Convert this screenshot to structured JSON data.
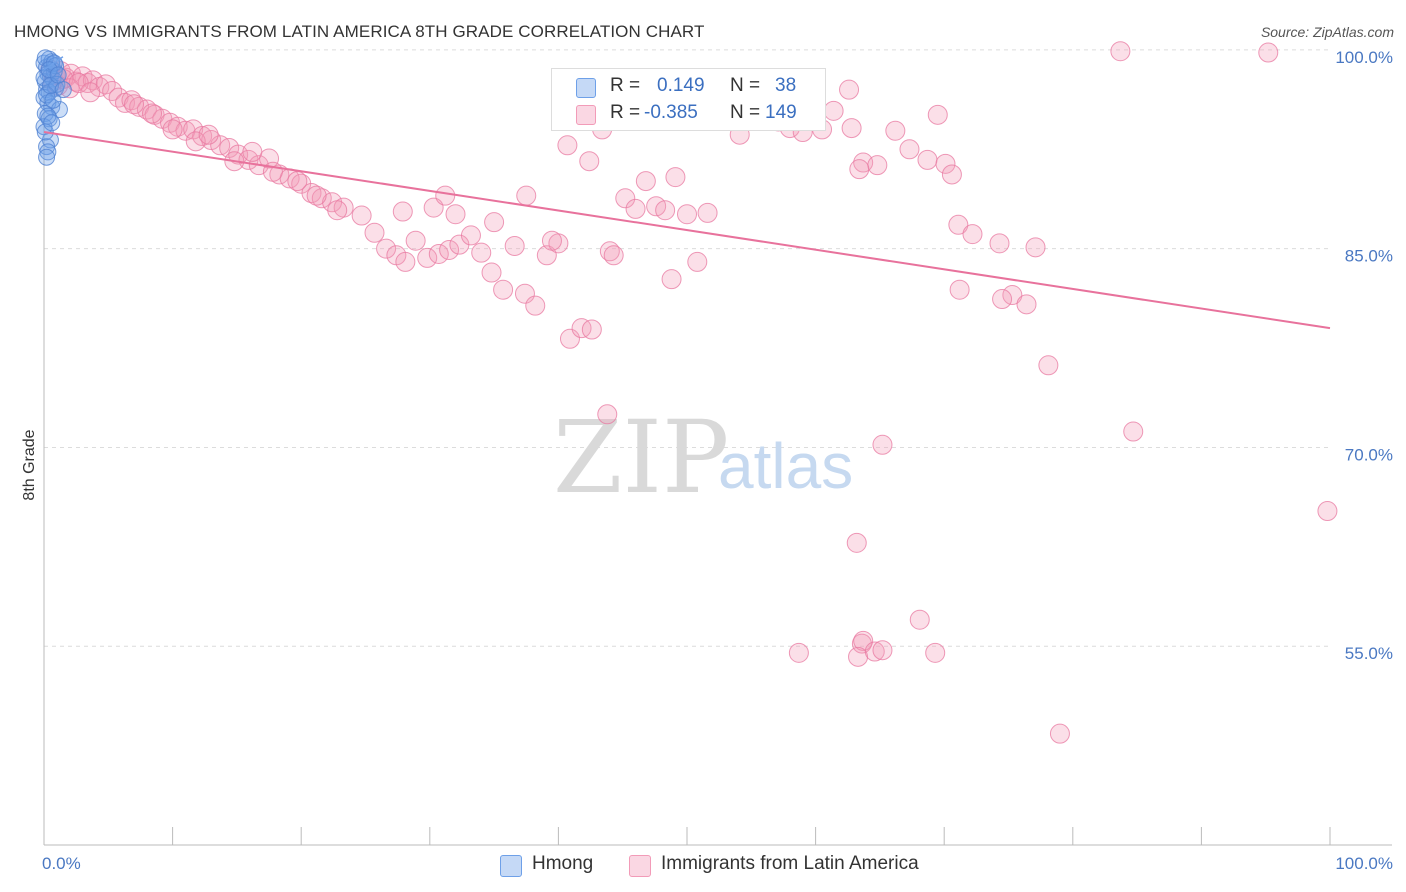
{
  "title": "HMONG VS IMMIGRANTS FROM LATIN AMERICA 8TH GRADE CORRELATION CHART",
  "source": "Source: ZipAtlas.com",
  "legend": {
    "rows": [
      {
        "r_label": "R =",
        "r_value": "0.149",
        "n_label": "N =",
        "n_value": "38",
        "color": "#6ea0e8"
      },
      {
        "r_label": "R =",
        "r_value": "-0.385",
        "n_label": "N =",
        "n_value": "149",
        "color": "#f29bb8"
      }
    ]
  },
  "bottom_legend": [
    {
      "label": "Hmong",
      "color": "#6ea0e8"
    },
    {
      "label": "Immigrants from Latin America",
      "color": "#f29bb8"
    }
  ],
  "watermark": {
    "zip": "ZIP",
    "atlas": "atlas"
  },
  "chart_data": {
    "type": "scatter",
    "title": "HMONG VS IMMIGRANTS FROM LATIN AMERICA 8TH GRADE CORRELATION CHART",
    "xlabel": "",
    "ylabel": "8th Grade",
    "xlim": [
      0,
      100
    ],
    "ylim": [
      40,
      101.5
    ],
    "x_tick_labels": [
      "0.0%",
      "100.0%"
    ],
    "y_ticks": [
      55,
      70,
      85,
      100
    ],
    "y_tick_labels": [
      "55.0%",
      "70.0%",
      "85.0%",
      "100.0%"
    ],
    "grid": true,
    "series": [
      {
        "name": "Hmong",
        "color": "#6ea0e8",
        "points": [
          [
            0.0,
            99.0
          ],
          [
            0.2,
            98.7
          ],
          [
            0.4,
            99.3
          ],
          [
            0.6,
            98.9
          ],
          [
            0.3,
            98.2
          ],
          [
            0.5,
            98.0
          ],
          [
            0.1,
            97.6
          ],
          [
            0.7,
            97.8
          ],
          [
            0.2,
            97.0
          ],
          [
            0.4,
            96.8
          ],
          [
            0.9,
            97.1
          ],
          [
            0.0,
            96.4
          ],
          [
            0.3,
            96.0
          ],
          [
            0.6,
            95.7
          ],
          [
            0.1,
            95.2
          ],
          [
            1.2,
            95.5
          ],
          [
            0.4,
            94.8
          ],
          [
            0.0,
            94.2
          ],
          [
            0.5,
            93.2
          ],
          [
            0.2,
            92.7
          ],
          [
            0.3,
            92.3
          ],
          [
            0.8,
            98.4
          ],
          [
            1.0,
            97.4
          ],
          [
            0.6,
            99.1
          ],
          [
            0.1,
            99.4
          ],
          [
            0.9,
            98.8
          ],
          [
            0.2,
            96.6
          ],
          [
            0.7,
            96.2
          ],
          [
            0.0,
            97.9
          ],
          [
            0.5,
            97.3
          ],
          [
            1.5,
            97.0
          ],
          [
            0.3,
            95.0
          ],
          [
            0.8,
            99.0
          ],
          [
            0.4,
            98.5
          ],
          [
            0.1,
            93.8
          ],
          [
            0.6,
            94.5
          ],
          [
            1.1,
            98.1
          ],
          [
            0.2,
            91.9
          ]
        ],
        "trend": [
          [
            0.0,
            98.5
          ],
          [
            1.5,
            99.5
          ]
        ]
      },
      {
        "name": "Immigrants from Latin America",
        "color": "#f29bb8",
        "points": [
          [
            0.5,
            98.5
          ],
          [
            0.9,
            98.1
          ],
          [
            1.3,
            98.4
          ],
          [
            1.7,
            97.9
          ],
          [
            2.1,
            98.2
          ],
          [
            2.5,
            97.6
          ],
          [
            3.0,
            98.0
          ],
          [
            3.4,
            97.5
          ],
          [
            3.8,
            97.7
          ],
          [
            4.3,
            97.2
          ],
          [
            4.8,
            97.4
          ],
          [
            5.3,
            96.9
          ],
          [
            0.7,
            97.6
          ],
          [
            1.1,
            97.3
          ],
          [
            1.5,
            97.8
          ],
          [
            2.0,
            97.1
          ],
          [
            2.7,
            97.5
          ],
          [
            3.6,
            96.8
          ],
          [
            5.8,
            96.4
          ],
          [
            6.3,
            96.0
          ],
          [
            6.8,
            96.2
          ],
          [
            7.4,
            95.7
          ],
          [
            8.0,
            95.5
          ],
          [
            8.6,
            95.1
          ],
          [
            9.2,
            94.8
          ],
          [
            9.8,
            94.5
          ],
          [
            10.4,
            94.2
          ],
          [
            11.0,
            93.9
          ],
          [
            11.6,
            94.0
          ],
          [
            12.3,
            93.5
          ],
          [
            13.0,
            93.2
          ],
          [
            13.7,
            92.8
          ],
          [
            14.4,
            92.6
          ],
          [
            15.1,
            92.1
          ],
          [
            15.9,
            91.7
          ],
          [
            16.7,
            91.3
          ],
          [
            17.5,
            91.8
          ],
          [
            18.3,
            90.6
          ],
          [
            19.1,
            90.3
          ],
          [
            20.0,
            89.9
          ],
          [
            20.8,
            89.2
          ],
          [
            21.6,
            88.8
          ],
          [
            22.4,
            88.5
          ],
          [
            23.3,
            88.1
          ],
          [
            7.0,
            95.9
          ],
          [
            8.4,
            95.2
          ],
          [
            10.0,
            94.0
          ],
          [
            11.8,
            93.1
          ],
          [
            12.8,
            93.6
          ],
          [
            14.8,
            91.6
          ],
          [
            16.2,
            92.3
          ],
          [
            17.8,
            90.8
          ],
          [
            19.7,
            90.1
          ],
          [
            21.2,
            89.0
          ],
          [
            22.8,
            87.9
          ],
          [
            24.7,
            87.5
          ],
          [
            25.7,
            86.2
          ],
          [
            26.6,
            85.0
          ],
          [
            27.4,
            84.5
          ],
          [
            28.1,
            84.0
          ],
          [
            28.9,
            85.6
          ],
          [
            29.8,
            84.3
          ],
          [
            30.7,
            84.6
          ],
          [
            31.5,
            84.9
          ],
          [
            32.3,
            85.3
          ],
          [
            33.2,
            86.0
          ],
          [
            34.0,
            84.7
          ],
          [
            34.8,
            83.2
          ],
          [
            35.7,
            81.9
          ],
          [
            36.6,
            85.2
          ],
          [
            37.4,
            81.6
          ],
          [
            38.2,
            80.7
          ],
          [
            39.1,
            84.5
          ],
          [
            40.0,
            85.4
          ],
          [
            40.9,
            78.2
          ],
          [
            41.8,
            79.0
          ],
          [
            42.6,
            78.9
          ],
          [
            27.9,
            87.8
          ],
          [
            30.3,
            88.1
          ],
          [
            32.0,
            87.6
          ],
          [
            31.2,
            89.0
          ],
          [
            35.0,
            87.0
          ],
          [
            37.5,
            89.0
          ],
          [
            39.5,
            85.6
          ],
          [
            40.7,
            92.8
          ],
          [
            42.4,
            91.6
          ],
          [
            43.4,
            94.0
          ],
          [
            44.0,
            84.8
          ],
          [
            44.3,
            84.5
          ],
          [
            45.2,
            88.8
          ],
          [
            46.0,
            88.0
          ],
          [
            46.8,
            90.1
          ],
          [
            47.6,
            88.2
          ],
          [
            48.3,
            87.9
          ],
          [
            49.1,
            90.4
          ],
          [
            50.0,
            87.6
          ],
          [
            50.8,
            84.0
          ],
          [
            51.6,
            87.7
          ],
          [
            52.2,
            94.7
          ],
          [
            53.0,
            95.7
          ],
          [
            54.1,
            93.6
          ],
          [
            55.2,
            96.4
          ],
          [
            56.3,
            95.6
          ],
          [
            57.1,
            94.6
          ],
          [
            58.0,
            94.1
          ],
          [
            59.0,
            93.8
          ],
          [
            60.5,
            94.0
          ],
          [
            61.4,
            95.4
          ],
          [
            62.8,
            94.1
          ],
          [
            63.7,
            91.5
          ],
          [
            64.8,
            91.3
          ],
          [
            66.2,
            93.9
          ],
          [
            67.3,
            92.5
          ],
          [
            68.7,
            91.7
          ],
          [
            69.5,
            95.1
          ],
          [
            70.1,
            91.4
          ],
          [
            70.6,
            90.6
          ],
          [
            71.1,
            86.8
          ],
          [
            72.2,
            86.1
          ],
          [
            74.3,
            85.4
          ],
          [
            75.3,
            81.5
          ],
          [
            76.4,
            80.8
          ],
          [
            77.1,
            85.1
          ],
          [
            78.1,
            76.2
          ],
          [
            46.5,
            96.1
          ],
          [
            48.8,
            82.7
          ],
          [
            58.3,
            96.2
          ],
          [
            62.6,
            97.0
          ],
          [
            63.4,
            91.0
          ],
          [
            83.7,
            99.9
          ],
          [
            95.2,
            99.8
          ],
          [
            63.2,
            62.8
          ],
          [
            63.6,
            55.2
          ],
          [
            63.7,
            55.4
          ],
          [
            58.7,
            54.5
          ],
          [
            63.3,
            54.2
          ],
          [
            64.6,
            54.6
          ],
          [
            65.2,
            54.7
          ],
          [
            68.1,
            57.0
          ],
          [
            69.3,
            54.5
          ],
          [
            99.8,
            65.2
          ],
          [
            79.0,
            48.4
          ],
          [
            43.8,
            72.5
          ],
          [
            65.2,
            70.2
          ],
          [
            71.2,
            81.9
          ],
          [
            74.5,
            81.2
          ],
          [
            84.7,
            71.2
          ]
        ],
        "trend": [
          [
            0.0,
            93.8
          ],
          [
            100.0,
            79.0
          ]
        ]
      }
    ]
  }
}
